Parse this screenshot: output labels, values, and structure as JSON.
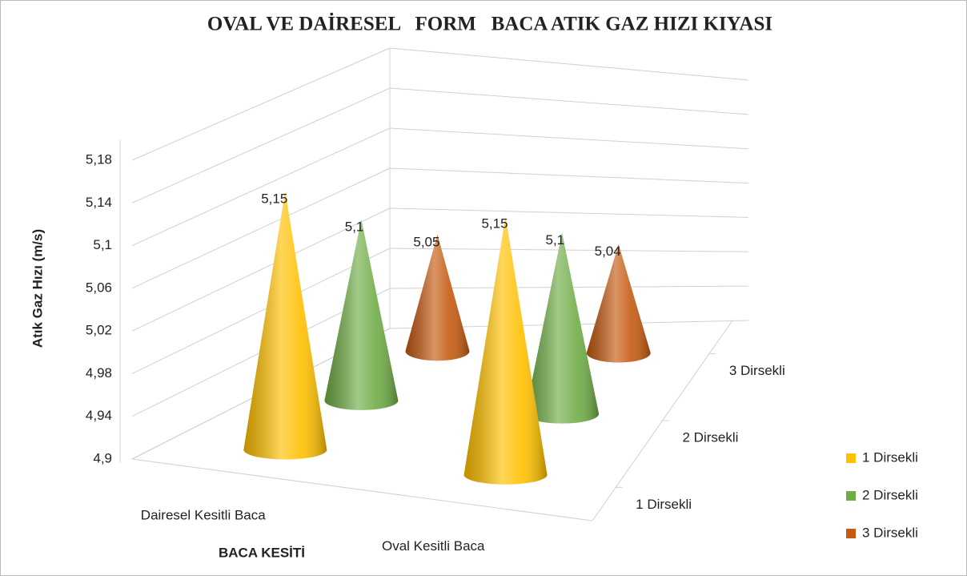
{
  "chart_data": {
    "type": "cone3d",
    "title": "OVAL VE DAİRESEL   FORM   BACA ATIK GAZ HIZI KIYASI",
    "y_label": "Atık Gaz Hızı (m/s)",
    "x_label": "BACA KESİTİ",
    "categories": [
      "Dairesel Kesitli Baca",
      "Oval Kesitli Baca"
    ],
    "series": [
      {
        "name": "1 Dirsekli",
        "color": "#ffc000",
        "values": [
          5.15,
          5.15
        ],
        "value_labels": [
          "5,15",
          "5,15"
        ]
      },
      {
        "name": "2 Dirsekli",
        "color": "#70ad47",
        "values": [
          5.1,
          5.1
        ],
        "value_labels": [
          "5,1",
          "5,1"
        ]
      },
      {
        "name": "3 Dirsekli",
        "color": "#c55a11",
        "values": [
          5.05,
          5.04
        ],
        "value_labels": [
          "5,05",
          "5,04"
        ]
      }
    ],
    "ylim": [
      4.9,
      5.18
    ],
    "yticks": [
      {
        "value": 4.9,
        "label": "4,9"
      },
      {
        "value": 4.94,
        "label": "4,94"
      },
      {
        "value": 4.98,
        "label": "4,98"
      },
      {
        "value": 5.02,
        "label": "5,02"
      },
      {
        "value": 5.06,
        "label": "5,06"
      },
      {
        "value": 5.1,
        "label": "5,1"
      },
      {
        "value": 5.14,
        "label": "5,14"
      },
      {
        "value": 5.18,
        "label": "5,18"
      }
    ],
    "grid": true,
    "legend": "right"
  }
}
